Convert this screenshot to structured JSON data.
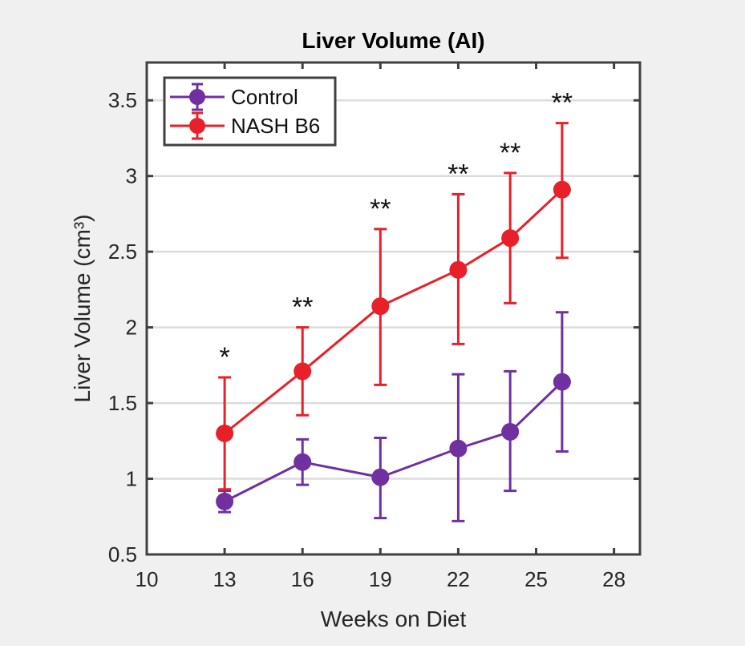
{
  "chart_data": {
    "type": "line",
    "title": "Liver Volume (AI)",
    "xlabel": "Weeks on Diet",
    "ylabel": "Liver Volume (cm³)",
    "xlim": [
      10,
      29
    ],
    "ylim": [
      0.5,
      3.75
    ],
    "xticks": [
      10,
      13,
      16,
      19,
      22,
      25,
      28
    ],
    "yticks": [
      0.5,
      1,
      1.5,
      2,
      2.5,
      3,
      3.5
    ],
    "ytick_labels": [
      "0.5",
      "1",
      "1.5",
      "2",
      "2.5",
      "3",
      "3.5"
    ],
    "grid": "horizontal",
    "legend_position": "top-left",
    "x": [
      13,
      16,
      19,
      22,
      24,
      26
    ],
    "series": [
      {
        "name": "Control",
        "color": "#7030a0",
        "values": [
          0.85,
          1.11,
          1.01,
          1.2,
          1.31,
          1.64
        ],
        "err_upper": [
          0.92,
          1.26,
          1.27,
          1.69,
          1.71,
          2.1
        ],
        "err_lower": [
          0.78,
          0.96,
          0.74,
          0.72,
          0.92,
          1.18
        ]
      },
      {
        "name": "NASH B6",
        "color": "#e8202a",
        "values": [
          1.3,
          1.71,
          2.14,
          2.38,
          2.59,
          2.91
        ],
        "err_upper": [
          1.67,
          2.0,
          2.65,
          2.88,
          3.02,
          3.35
        ],
        "err_lower": [
          0.93,
          1.42,
          1.62,
          1.89,
          2.16,
          2.46
        ]
      }
    ],
    "annotations": [
      "*",
      "**",
      "**",
      "**",
      "**",
      "**"
    ]
  }
}
